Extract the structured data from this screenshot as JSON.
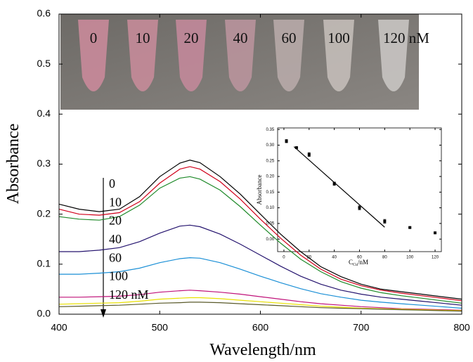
{
  "chart_data": [
    {
      "type": "line",
      "x_label": "Wavelength/nm",
      "y_label": "Absorbance",
      "xlim": [
        400,
        800
      ],
      "ylim": [
        0,
        0.6
      ],
      "xticks": [
        400,
        500,
        600,
        700,
        800
      ],
      "yticks": [
        {
          "value": 0,
          "label": "0.0"
        },
        0.1,
        0.2,
        0.3,
        0.4,
        0.5,
        0.6
      ],
      "photo_labels": [
        "0",
        "10",
        "20",
        "40",
        "60",
        "100",
        "120 nM"
      ],
      "x": [
        400,
        420,
        440,
        460,
        480,
        500,
        520,
        530,
        540,
        560,
        580,
        600,
        620,
        640,
        660,
        680,
        700,
        720,
        740,
        760,
        780,
        800
      ],
      "series": [
        {
          "name": "0",
          "color": "#000000",
          "values": [
            0.22,
            0.21,
            0.205,
            0.21,
            0.235,
            0.275,
            0.302,
            0.308,
            0.303,
            0.275,
            0.24,
            0.2,
            0.16,
            0.125,
            0.095,
            0.075,
            0.06,
            0.05,
            0.045,
            0.04,
            0.035,
            0.03
          ]
        },
        {
          "name": "10",
          "color": "#d0001a",
          "values": [
            0.21,
            0.2,
            0.198,
            0.203,
            0.225,
            0.262,
            0.29,
            0.295,
            0.29,
            0.265,
            0.23,
            0.19,
            0.152,
            0.118,
            0.09,
            0.07,
            0.057,
            0.048,
            0.042,
            0.037,
            0.032,
            0.027
          ]
        },
        {
          "name": "20",
          "color": "#1f8a2a",
          "values": [
            0.195,
            0.19,
            0.188,
            0.195,
            0.218,
            0.252,
            0.272,
            0.275,
            0.27,
            0.248,
            0.215,
            0.178,
            0.142,
            0.11,
            0.085,
            0.065,
            0.052,
            0.043,
            0.037,
            0.032,
            0.027,
            0.022
          ]
        },
        {
          "name": "40",
          "color": "#24136e",
          "values": [
            0.125,
            0.125,
            0.128,
            0.133,
            0.145,
            0.162,
            0.176,
            0.178,
            0.175,
            0.16,
            0.14,
            0.118,
            0.096,
            0.076,
            0.06,
            0.048,
            0.04,
            0.034,
            0.03,
            0.026,
            0.022,
            0.018
          ]
        },
        {
          "name": "60",
          "color": "#1a8fd6",
          "values": [
            0.08,
            0.08,
            0.082,
            0.085,
            0.092,
            0.103,
            0.111,
            0.113,
            0.112,
            0.103,
            0.09,
            0.076,
            0.063,
            0.051,
            0.041,
            0.034,
            0.028,
            0.024,
            0.021,
            0.018,
            0.015,
            0.012
          ]
        },
        {
          "name": "100",
          "color": "#c0137a",
          "values": [
            0.034,
            0.034,
            0.035,
            0.036,
            0.039,
            0.044,
            0.047,
            0.048,
            0.047,
            0.044,
            0.04,
            0.035,
            0.03,
            0.025,
            0.021,
            0.018,
            0.015,
            0.013,
            0.011,
            0.01,
            0.009,
            0.008
          ]
        },
        {
          "name": "120 nM",
          "color": "#e8e000",
          "values": [
            0.02,
            0.021,
            0.022,
            0.023,
            0.026,
            0.03,
            0.032,
            0.033,
            0.033,
            0.031,
            0.028,
            0.025,
            0.022,
            0.019,
            0.016,
            0.014,
            0.012,
            0.011,
            0.01,
            0.009,
            0.008,
            0.007
          ]
        },
        {
          "color": "#5a5a2a",
          "values": [
            0.015,
            0.016,
            0.017,
            0.018,
            0.02,
            0.022,
            0.023,
            0.024,
            0.024,
            0.023,
            0.021,
            0.019,
            0.017,
            0.015,
            0.013,
            0.012,
            0.011,
            0.01,
            0.009,
            0.008,
            0.007,
            0.006
          ]
        }
      ]
    },
    {
      "type": "scatter",
      "x_label": "C",
      "x_label_sub": "Cu",
      "x_label_rest": "/nM",
      "y_label": "Absorbance",
      "xlim": [
        -5,
        125
      ],
      "ylim": [
        -0.04,
        0.355
      ],
      "xticks": [
        0,
        20,
        40,
        60,
        80,
        100,
        120
      ],
      "yticks": [
        {
          "value": 0,
          "label": "0.00"
        },
        0.05,
        {
          "value": 0.1,
          "label": "0.10"
        },
        0.15,
        {
          "value": 0.2,
          "label": "0.20"
        },
        0.25,
        {
          "value": 0.3,
          "label": "0.30"
        },
        0.35
      ],
      "color": "#000000",
      "x": [
        2,
        10,
        20,
        40,
        60,
        80,
        100,
        120
      ],
      "values": [
        0.313,
        0.292,
        0.27,
        0.177,
        0.1,
        0.057,
        0.037,
        0.02
      ],
      "errors": [
        0.005,
        0.002,
        0.006,
        0.005,
        0.006,
        0.006,
        0.002,
        0.003
      ],
      "fit": {
        "x": [
          8,
          80
        ],
        "values": [
          0.295,
          0.038
        ]
      }
    }
  ]
}
